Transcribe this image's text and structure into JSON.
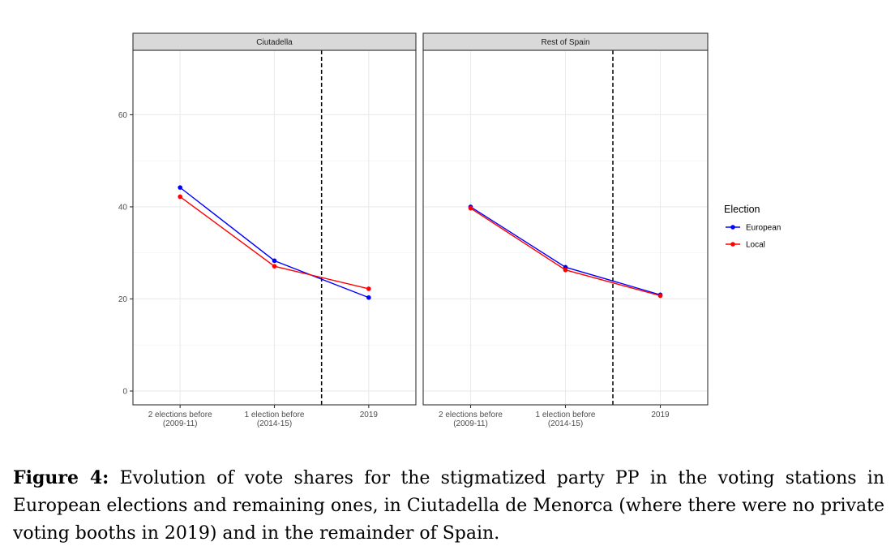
{
  "chart_data": {
    "type": "line",
    "facets": [
      "Ciutadella",
      "Rest of Spain"
    ],
    "categories": [
      "2 elections before\n(2009-11)",
      "1 election before\n(2014-15)",
      "2019"
    ],
    "ylim": [
      -3,
      74
    ],
    "yticks": [
      0,
      20,
      40,
      60
    ],
    "legend": {
      "title": "Election",
      "entries": [
        "European",
        "Local"
      ],
      "position": "right"
    },
    "colors": {
      "European": "#0000ff",
      "Local": "#ff0000"
    },
    "vline_between": [
      1,
      2
    ],
    "series": [
      {
        "facet": "Ciutadella",
        "name": "European",
        "values": [
          44.2,
          28.3,
          20.3
        ]
      },
      {
        "facet": "Ciutadella",
        "name": "Local",
        "values": [
          42.2,
          27.1,
          22.2
        ]
      },
      {
        "facet": "Rest of Spain",
        "name": "European",
        "values": [
          40.0,
          26.9,
          20.9
        ]
      },
      {
        "facet": "Rest of Spain",
        "name": "Local",
        "values": [
          39.7,
          26.3,
          20.7
        ]
      }
    ]
  },
  "caption": {
    "label": "Figure 4:",
    "text": "Evolution of vote shares for the stigmatized party PP in the voting stations in European elections and remaining ones, in Ciutadella de Menorca (where there were no private voting booths in 2019) and in the remainder of Spain."
  }
}
